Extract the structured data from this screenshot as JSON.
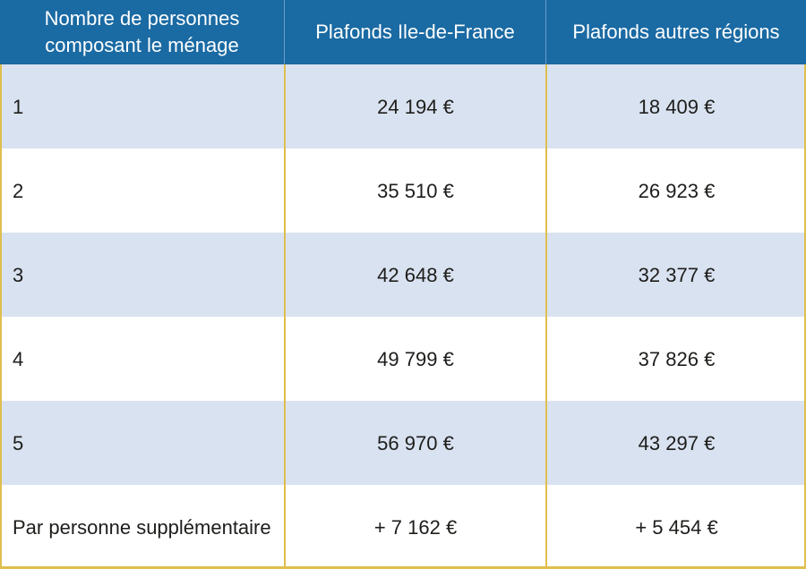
{
  "table": {
    "columns": [
      {
        "label": "Nombre de personnes composant le ménage"
      },
      {
        "label": "Plafonds Ile-de-France"
      },
      {
        "label": "Plafonds autres régions"
      }
    ],
    "rows": [
      {
        "household": "1",
        "idf": "24 194 €",
        "other": "18 409 €"
      },
      {
        "household": "2",
        "idf": "35 510 €",
        "other": "26 923 €"
      },
      {
        "household": "3",
        "idf": "42 648 €",
        "other": "32 377 €"
      },
      {
        "household": "4",
        "idf": "49 799 €",
        "other": "37 826 €"
      },
      {
        "household": "5",
        "idf": "56 970 €",
        "other": "43 297 €"
      },
      {
        "household": "Par personne supplémentaire",
        "idf": "+ 7 162 €",
        "other": "+ 5 454 €"
      }
    ],
    "colors": {
      "header_background": "#1a6aa3",
      "header_text": "#ffffff",
      "row_shade": "#d9e2f0",
      "row_plain": "#ffffff",
      "grid_accent": "#dfbf4e",
      "body_text": "#1d1d1b"
    }
  },
  "chart_data": {
    "type": "table",
    "title": "",
    "columns": [
      "Nombre de personnes composant le ménage",
      "Plafonds Ile-de-France",
      "Plafonds autres régions"
    ],
    "rows": [
      [
        "1",
        "24 194 €",
        "18 409 €"
      ],
      [
        "2",
        "35 510 €",
        "26 923 €"
      ],
      [
        "3",
        "42 648 €",
        "32 377 €"
      ],
      [
        "4",
        "49 799 €",
        "37 826 €"
      ],
      [
        "5",
        "56 970 €",
        "43 297 €"
      ],
      [
        "Par personne supplémentaire",
        "+ 7 162 €",
        "+ 5 454 €"
      ]
    ],
    "values_idf": [
      24194,
      35510,
      42648,
      49799,
      56970,
      7162
    ],
    "values_other_regions": [
      18409,
      26923,
      32377,
      37826,
      43297,
      5454
    ]
  }
}
